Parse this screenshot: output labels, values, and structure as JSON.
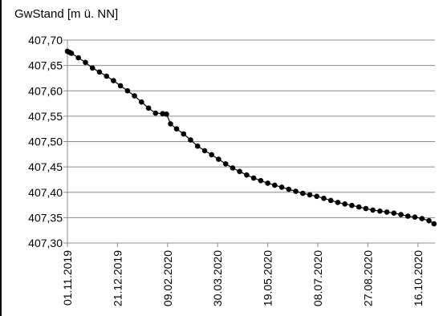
{
  "chart_data": {
    "type": "scatter",
    "title": "",
    "xlabel": "",
    "ylabel": "GwStand [m ü. NN]",
    "ylim": [
      407.3,
      407.7
    ],
    "y_ticks": [
      407.3,
      407.35,
      407.4,
      407.45,
      407.5,
      407.55,
      407.6,
      407.65,
      407.7
    ],
    "y_tick_labels": [
      "407,30",
      "407,35",
      "407,40",
      "407,45",
      "407,50",
      "407,55",
      "407,60",
      "407,65",
      "407,70"
    ],
    "x_ticks": [
      "2019-11-01",
      "2019-12-21",
      "2020-02-09",
      "2020-03-30",
      "2020-05-19",
      "2020-07-08",
      "2020-08-27",
      "2020-10-16"
    ],
    "x_tick_labels": [
      "01.11.2019",
      "21.12.2019",
      "09.02.2020",
      "30.03.2020",
      "19.05.2020",
      "08.07.2020",
      "27.08.2020",
      "16.10.2020"
    ],
    "xlim": [
      "2019-11-01",
      "2020-11-02"
    ],
    "grid": "horizontal",
    "legend": "none",
    "marker_color": "#000000",
    "line_color": "#000000",
    "series": [
      {
        "x": [
          "2019-11-01",
          "2019-11-03",
          "2019-11-05",
          "2019-11-12",
          "2019-11-19",
          "2019-11-26",
          "2019-12-03",
          "2019-12-10",
          "2019-12-17",
          "2019-12-24",
          "2019-12-31",
          "2020-01-07",
          "2020-01-14",
          "2020-01-21",
          "2020-01-28",
          "2020-02-04",
          "2020-02-08",
          "2020-02-12",
          "2020-02-18",
          "2020-02-25",
          "2020-03-03",
          "2020-03-10",
          "2020-03-17",
          "2020-03-24",
          "2020-03-31",
          "2020-04-07",
          "2020-04-14",
          "2020-04-21",
          "2020-04-28",
          "2020-05-05",
          "2020-05-12",
          "2020-05-19",
          "2020-05-26",
          "2020-06-02",
          "2020-06-09",
          "2020-06-16",
          "2020-06-23",
          "2020-06-30",
          "2020-07-07",
          "2020-07-14",
          "2020-07-21",
          "2020-07-28",
          "2020-08-04",
          "2020-08-11",
          "2020-08-18",
          "2020-08-25",
          "2020-09-01",
          "2020-09-08",
          "2020-09-15",
          "2020-09-22",
          "2020-09-29",
          "2020-10-06",
          "2020-10-13",
          "2020-10-20",
          "2020-10-27",
          "2020-11-01"
        ],
        "values": [
          407.678,
          407.676,
          407.674,
          407.665,
          407.656,
          407.645,
          407.637,
          407.629,
          407.62,
          407.61,
          407.6,
          407.59,
          407.578,
          407.566,
          407.556,
          407.555,
          407.554,
          407.535,
          407.525,
          407.515,
          407.503,
          407.491,
          407.482,
          407.474,
          407.465,
          407.456,
          407.448,
          407.441,
          407.434,
          407.428,
          407.423,
          407.418,
          407.414,
          407.41,
          407.406,
          407.402,
          407.398,
          407.395,
          407.392,
          407.388,
          407.384,
          407.38,
          407.377,
          407.374,
          407.371,
          407.368,
          407.365,
          407.363,
          407.361,
          407.359,
          407.356,
          407.353,
          407.351,
          407.348,
          407.344,
          407.338
        ]
      }
    ]
  }
}
